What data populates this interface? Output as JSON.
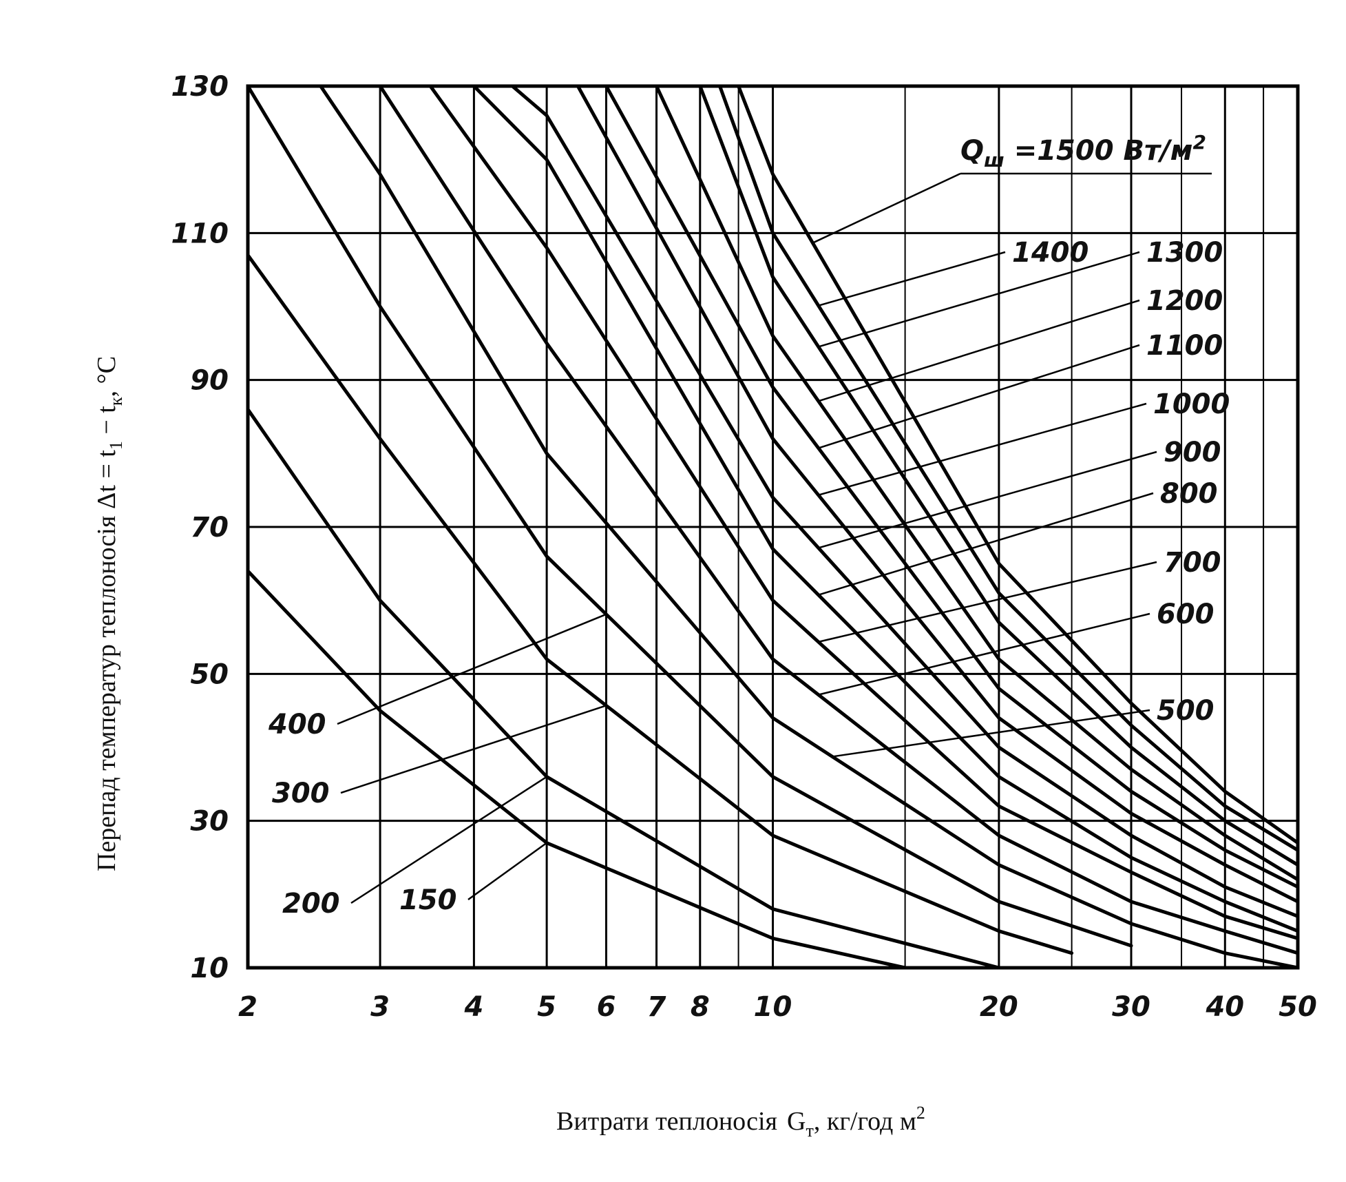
{
  "chart_data": {
    "type": "line",
    "xlabel": "Витрати теплоносія",
    "xlabel_symbol": "G",
    "xlabel_subscript": "т",
    "xlabel_unit": ", кг/год м",
    "xlabel_unit_sup": "2",
    "ylabel": "Перепад температур теплоносія  Δt = t",
    "ylabel_sub1": "1",
    "ylabel_mid": " − t",
    "ylabel_sub2": "к",
    "ylabel_unit": ", °C",
    "x_scale": "log",
    "xlim": [
      2,
      50
    ],
    "ylim": [
      10,
      130
    ],
    "x_ticks": [
      2,
      3,
      4,
      5,
      6,
      7,
      8,
      10,
      20,
      30,
      40,
      50
    ],
    "y_ticks": [
      10,
      30,
      50,
      70,
      90,
      110,
      130
    ],
    "grid": true,
    "legend_prefix": "Q",
    "legend_subscript": "ш",
    "legend_suffix": " =1500 Вт/м",
    "legend_suffix_sup": "2",
    "series": [
      {
        "name": "150",
        "values_at_x": {
          "2": 64,
          "3": 45,
          "5": 27,
          "10": 14,
          "15": 10
        }
      },
      {
        "name": "200",
        "values_at_x": {
          "2": 86,
          "3": 60,
          "5": 36,
          "10": 18,
          "20": 10
        }
      },
      {
        "name": "300",
        "values_at_x": {
          "2": 107,
          "3": 82,
          "5": 52,
          "10": 28,
          "20": 15,
          "25": 12
        }
      },
      {
        "name": "400",
        "values_at_x": {
          "2": 130,
          "3": 100,
          "5": 66,
          "10": 36,
          "20": 19,
          "30": 13
        }
      },
      {
        "name": "500",
        "values_at_x": {
          "2.5": 130,
          "3": 118,
          "5": 80,
          "10": 44,
          "20": 24,
          "30": 16,
          "40": 12,
          "50": 10
        }
      },
      {
        "name": "600",
        "values_at_x": {
          "3": 130,
          "5": 95,
          "10": 52,
          "20": 28,
          "30": 19,
          "40": 15,
          "50": 12
        }
      },
      {
        "name": "700",
        "values_at_x": {
          "3.5": 130,
          "5": 108,
          "10": 60,
          "20": 32,
          "30": 23,
          "40": 17,
          "50": 14
        }
      },
      {
        "name": "800",
        "values_at_x": {
          "4": 130,
          "5": 120,
          "10": 67,
          "20": 36,
          "30": 25,
          "40": 19,
          "50": 15
        }
      },
      {
        "name": "900",
        "values_at_x": {
          "4.5": 130,
          "5": 126,
          "10": 74,
          "20": 40,
          "30": 28,
          "40": 21,
          "50": 17
        }
      },
      {
        "name": "1000",
        "values_at_x": {
          "5.5": 130,
          "10": 82,
          "20": 44,
          "30": 31,
          "40": 24,
          "50": 19
        }
      },
      {
        "name": "1100",
        "values_at_x": {
          "6": 130,
          "10": 89,
          "20": 48,
          "30": 34,
          "40": 26,
          "50": 21
        }
      },
      {
        "name": "1200",
        "values_at_x": {
          "7": 130,
          "10": 96,
          "20": 52,
          "30": 37,
          "40": 28,
          "50": 22
        }
      },
      {
        "name": "1300",
        "values_at_x": {
          "8": 130,
          "10": 104,
          "20": 57,
          "30": 40,
          "40": 30,
          "50": 24
        }
      },
      {
        "name": "1400",
        "values_at_x": {
          "8.5": 130,
          "10": 110,
          "20": 61,
          "30": 43,
          "40": 32,
          "50": 26
        }
      },
      {
        "name": "1500",
        "values_at_x": {
          "9": 130,
          "10": 118,
          "20": 65,
          "30": 46,
          "40": 34,
          "50": 27
        }
      }
    ]
  }
}
